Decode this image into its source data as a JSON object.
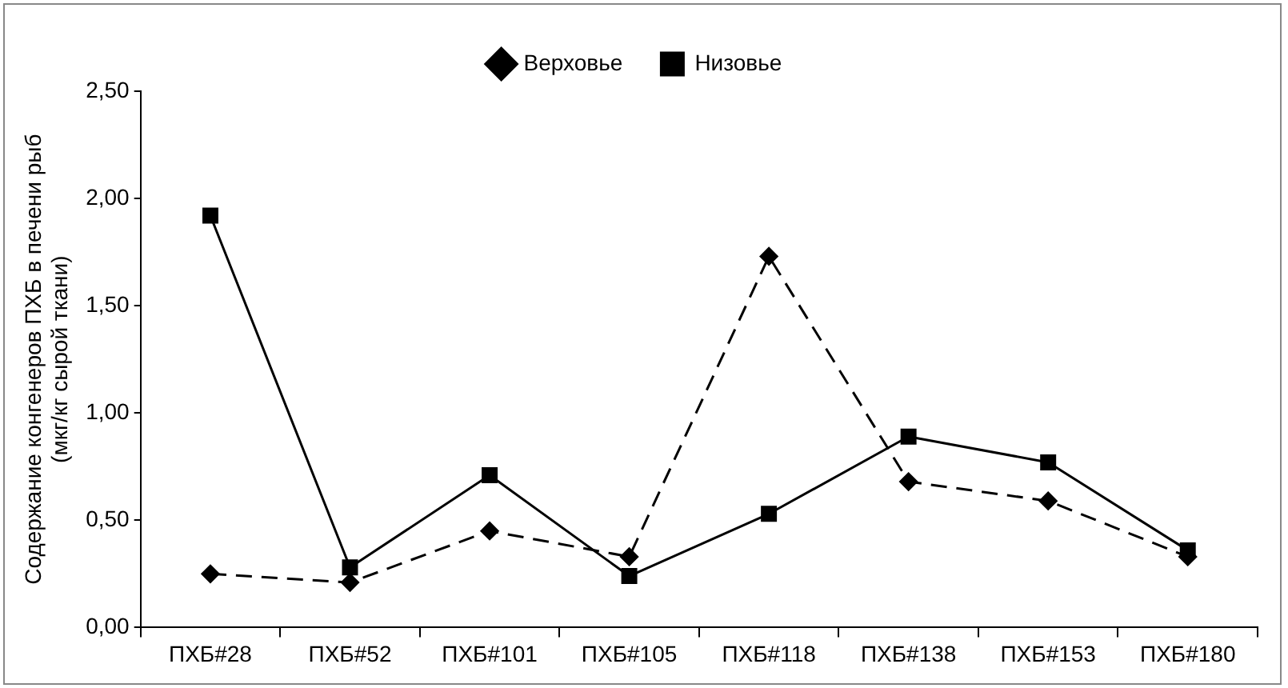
{
  "chart_data": {
    "type": "line",
    "ylabel": "Содержание конгенеров ПХБ в печени рыб (мкг/кг сырой ткани)",
    "categories": [
      "ПХБ#28",
      "ПХБ#52",
      "ПХБ#101",
      "ПХБ#105",
      "ПХБ#118",
      "ПХБ#138",
      "ПХБ#153",
      "ПХБ#180"
    ],
    "series": [
      {
        "name": "Верховье",
        "color": "#000000",
        "marker": "diamond",
        "line_style": "dashed",
        "values": [
          0.25,
          0.21,
          0.45,
          0.33,
          1.73,
          0.68,
          0.59,
          0.33
        ]
      },
      {
        "name": "Низовье",
        "color": "#000000",
        "marker": "square",
        "line_style": "solid",
        "values": [
          1.92,
          0.28,
          0.71,
          0.24,
          0.53,
          0.89,
          0.77,
          0.36
        ]
      }
    ],
    "ylim": [
      0,
      2.5
    ],
    "yticks": [
      {
        "value": 0,
        "label": "0,00"
      },
      {
        "value": 0.5,
        "label": "0,50"
      },
      {
        "value": 1,
        "label": "1,00"
      },
      {
        "value": 1.5,
        "label": "1,50"
      },
      {
        "value": 2,
        "label": "2,00"
      },
      {
        "value": 2.5,
        "label": "2,50"
      }
    ],
    "grid": false,
    "legend": "top"
  }
}
